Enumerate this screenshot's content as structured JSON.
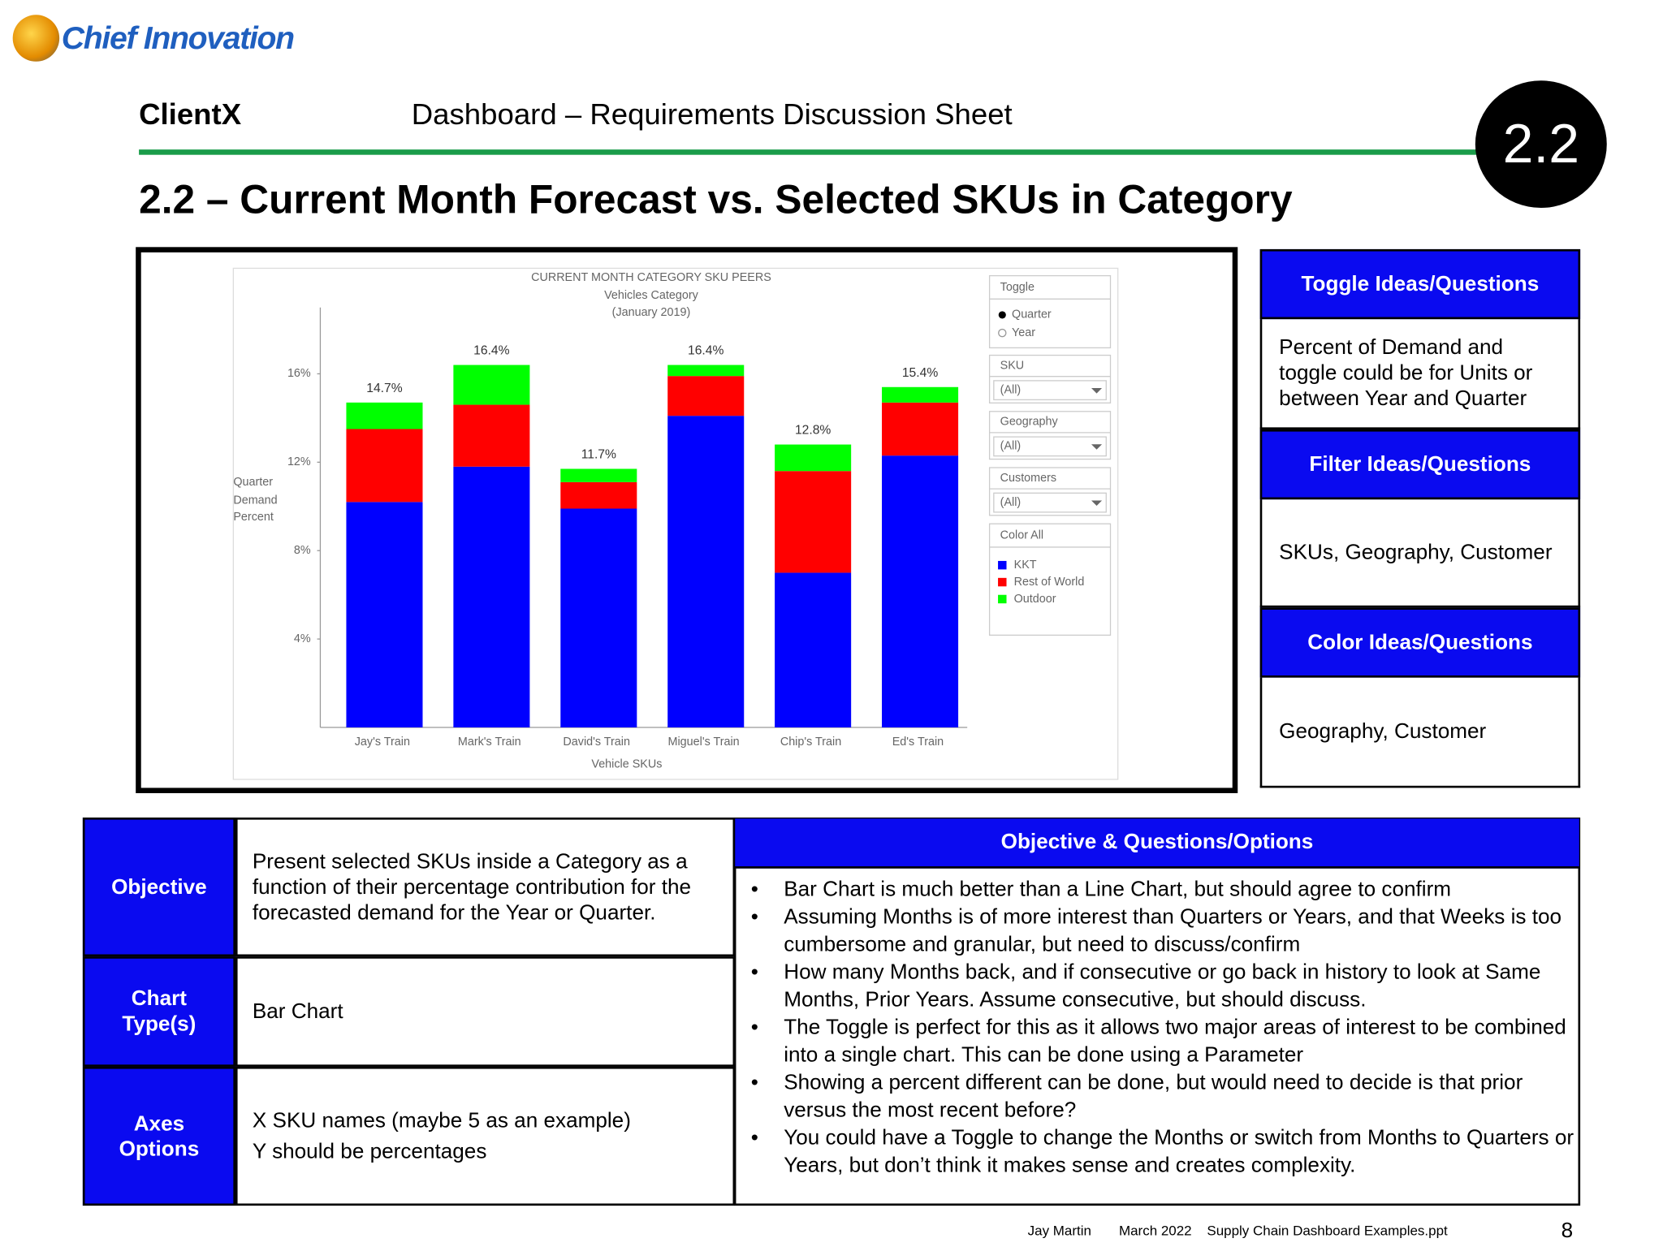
{
  "logo": "Chief Innovation",
  "header": {
    "client": "ClientX",
    "title": "Dashboard – Requirements Discussion Sheet",
    "badge": "2.2"
  },
  "heading": "2.2 – Current Month Forecast vs. Selected SKUs in Category",
  "chart_data": {
    "type": "bar",
    "stacked": true,
    "title": "CURRENT MONTH CATEGORY SKU PEERS",
    "subtitle": [
      "Vehicles Category",
      "(January 2019)"
    ],
    "ylabel": [
      "Quarter",
      "Demand",
      "Percent"
    ],
    "xlabel": "Vehicle SKUs",
    "categories": [
      "Jay's Train",
      "Mark's Train",
      "David's Train",
      "Miguel's Train",
      "Chip's Train",
      "Ed's Train"
    ],
    "series": [
      {
        "name": "KKT",
        "color": "#0000ff",
        "values": [
          10.2,
          11.8,
          9.9,
          14.1,
          7.0,
          12.3
        ]
      },
      {
        "name": "Rest of World",
        "color": "#ff0000",
        "values": [
          3.3,
          2.8,
          1.2,
          1.8,
          4.6,
          2.4
        ]
      },
      {
        "name": "Outdoor",
        "color": "#00ff00",
        "values": [
          1.2,
          1.8,
          0.6,
          0.5,
          1.2,
          0.7
        ]
      }
    ],
    "totals": [
      14.7,
      16.4,
      11.7,
      16.4,
      12.8,
      15.4
    ],
    "total_labels": [
      "14.7%",
      "16.4%",
      "11.7%",
      "16.4%",
      "12.8%",
      "15.4%"
    ],
    "ylim": [
      0,
      19
    ],
    "yticks": [
      {
        "value": 4,
        "label": "4%"
      },
      {
        "value": 8,
        "label": "8%"
      },
      {
        "value": 12,
        "label": "12%"
      },
      {
        "value": 16,
        "label": "16%"
      }
    ],
    "grid": false,
    "controls": {
      "toggle": {
        "title": "Toggle",
        "options": [
          "Quarter",
          "Year"
        ]
      },
      "filters": [
        {
          "title": "SKU",
          "value": "(All)"
        },
        {
          "title": "Geography",
          "value": "(All)"
        },
        {
          "title": "Customers",
          "value": "(All)"
        }
      ],
      "legend_title": "Color All"
    }
  },
  "side_panel": [
    {
      "heading": "Toggle Ideas/Questions",
      "body": "Percent of Demand and toggle could be for Units or between Year and Quarter"
    },
    {
      "heading": "Filter Ideas/Questions",
      "body": "SKUs, Geography, Customer"
    },
    {
      "heading": "Color Ideas/Questions",
      "body": "Geography, Customer"
    }
  ],
  "table": {
    "rows": [
      {
        "label": "Objective",
        "text": [
          "Present selected SKUs inside a Category as a function of their percentage contribution for the forecasted demand for the Year or Quarter."
        ]
      },
      {
        "label": "Chart Type(s)",
        "text": [
          "Bar Chart"
        ]
      },
      {
        "label": "Axes Options",
        "text": [
          "X SKU names (maybe 5 as an example)",
          "Y should be percentages"
        ]
      }
    ],
    "notes_title": "Objective & Questions/Options",
    "notes": [
      "Bar Chart is much better than a Line Chart, but should agree to confirm",
      "Assuming Months is of more interest than Quarters or Years, and that Weeks is too cumbersome and granular, but need to discuss/confirm",
      "How many Months back, and if consecutive or go back in history to look at Same Months, Prior Years.  Assume consecutive, but should discuss.",
      "The Toggle is perfect for this as it allows two major areas of interest to be combined into a single chart. This can be done using a Parameter",
      "Showing a percent different can be done, but would need to decide is that prior versus the most recent before?",
      "You could have a Toggle to change the Months or switch from Months to Quarters or Years, but don’t think it makes sense and creates complexity."
    ]
  },
  "footer": {
    "author": "Jay Martin",
    "date": "March 2022",
    "file": "Supply Chain Dashboard Examples.ppt",
    "page": "8"
  }
}
